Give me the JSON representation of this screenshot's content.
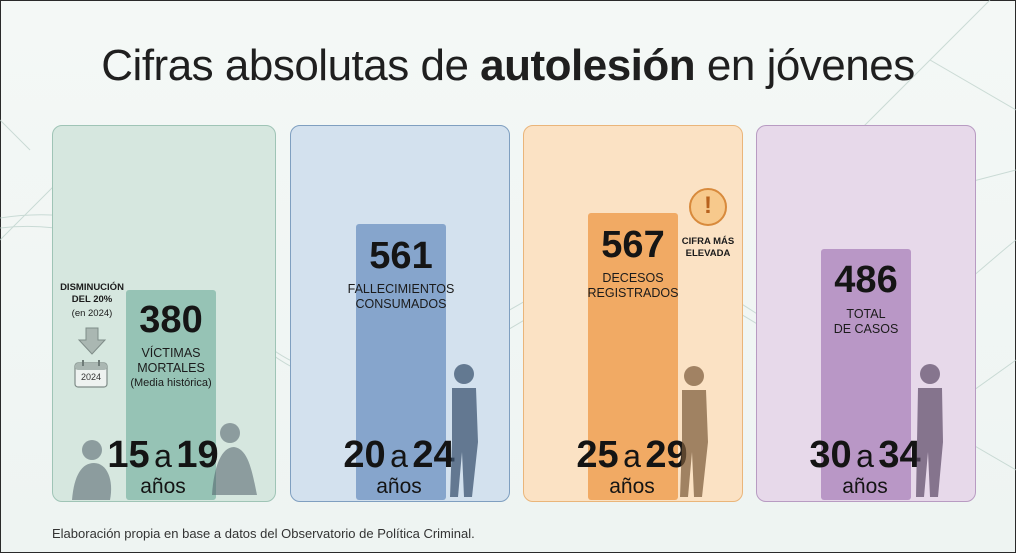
{
  "title": {
    "pre": "Cifras absolutas de ",
    "bold": "autolesión",
    "post": " en jóvenes"
  },
  "chart_data": {
    "type": "bar",
    "title": "Cifras absolutas de autolesión en jóvenes",
    "categories": [
      "15 a 19 años",
      "20 a 24 años",
      "25 a 29 años",
      "30 a 34 años"
    ],
    "values": [
      380,
      561,
      567,
      486
    ],
    "bar_labels": [
      [
        "VÍCTIMAS",
        "MORTALES",
        "(Media histórica)"
      ],
      [
        "FALLECIMIENTOS",
        "CONSUMADOS"
      ],
      [
        "DECESOS",
        "REGISTRADOS"
      ],
      [
        "TOTAL",
        "DE CASOS"
      ]
    ],
    "groups": [
      {
        "from": "15",
        "to": "19",
        "unit": "años"
      },
      {
        "from": "20",
        "to": "24",
        "unit": "años"
      },
      {
        "from": "25",
        "to": "29",
        "unit": "años"
      },
      {
        "from": "30",
        "to": "34",
        "unit": "años"
      }
    ],
    "connector": "a",
    "colors": {
      "panels": [
        "#d6e7df",
        "#d3e1ee",
        "#fbe2c4",
        "#e7d9ea"
      ],
      "panel_borders": [
        "#9fc4b6",
        "#7f9fc0",
        "#eab57a",
        "#b89bc2"
      ],
      "bars": [
        "#8fbfb0",
        "#7d9fc8",
        "#f0a75f",
        "#b48fc2"
      ]
    },
    "annotations": {
      "decrease_title": [
        "DISMINUCIÓN",
        "DEL 20%"
      ],
      "decrease_note": "(en 2024)",
      "calendar_year": "2024",
      "highest_note": [
        "CIFRA MÁS",
        "ELEVADA"
      ],
      "alert_symbol": "!"
    }
  },
  "footer": "Elaboración propia en base a datos del Observatorio de Política Criminal.",
  "icons": [
    "down-arrow-icon",
    "calendar-icon",
    "alert-icon"
  ]
}
